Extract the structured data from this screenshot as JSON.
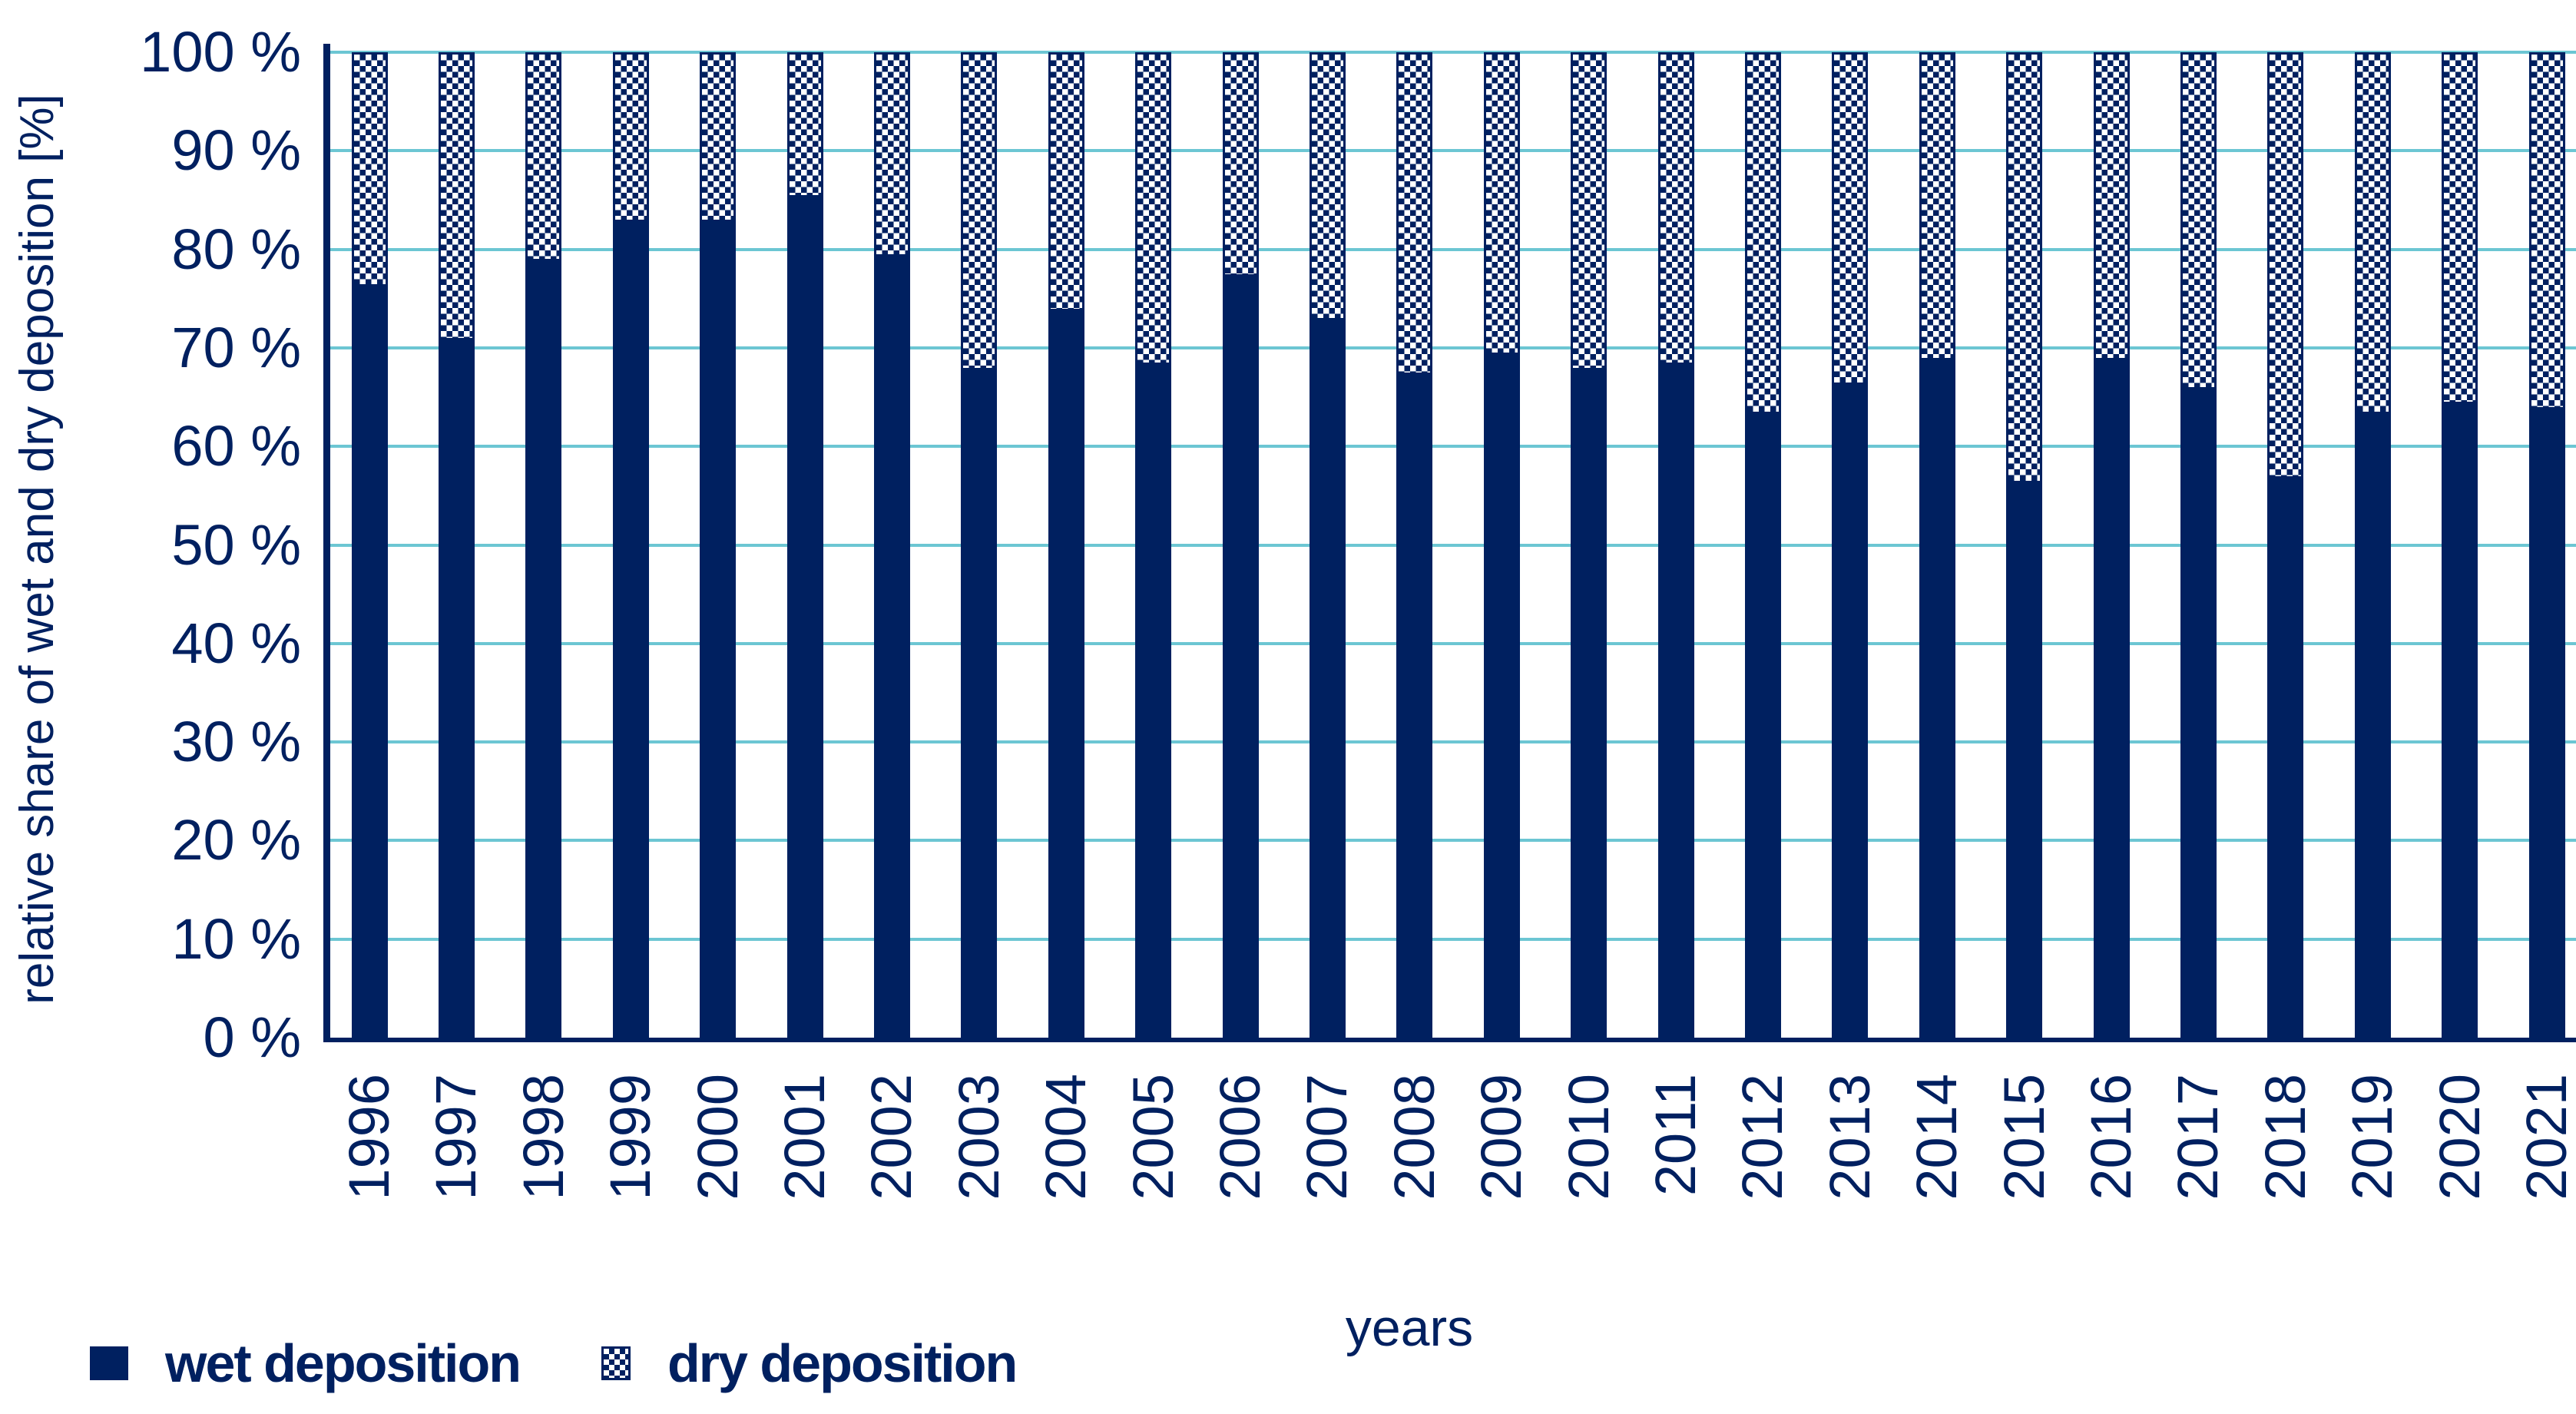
{
  "chart_data": {
    "type": "bar",
    "stacked": true,
    "percent_stacked": true,
    "title": "",
    "xlabel": "years",
    "ylabel": "relative share of wet and dry deposition [%]",
    "ylim": [
      0,
      100
    ],
    "ytick_step": 10,
    "ytick_suffix": " %",
    "grid": true,
    "legend_position": "bottom-left",
    "categories": [
      "1996",
      "1997",
      "1998",
      "1999",
      "2000",
      "2001",
      "2002",
      "2003",
      "2004",
      "2005",
      "2006",
      "2007",
      "2008",
      "2009",
      "2010",
      "2011",
      "2012",
      "2013",
      "2014",
      "2015",
      "2016",
      "2017",
      "2018",
      "2019",
      "2020",
      "2021"
    ],
    "series": [
      {
        "name": "wet deposition",
        "style": "solid",
        "values": [
          76.5,
          71,
          79,
          83,
          83,
          85.5,
          79.5,
          68,
          74,
          68.5,
          77.5,
          73,
          67.5,
          69.5,
          68,
          68.5,
          63.5,
          66.5,
          69,
          56.5,
          69,
          66,
          57,
          63.5,
          64.5,
          64
        ]
      },
      {
        "name": "dry deposition",
        "style": "checker",
        "values": [
          23.5,
          29,
          21,
          17,
          17,
          14.5,
          20.5,
          32,
          26,
          31.5,
          22.5,
          27,
          32.5,
          30.5,
          32,
          31.5,
          36.5,
          33.5,
          31,
          43.5,
          31,
          34,
          43,
          36.5,
          35.5,
          36
        ]
      }
    ]
  },
  "colors": {
    "navy": "#002060",
    "gridline_teal": "#6cc6d3",
    "pattern_background": "#ffffff",
    "page_background": "#ffffff"
  },
  "legend": {
    "wet_label": "wet deposition",
    "dry_label": "dry deposition"
  }
}
